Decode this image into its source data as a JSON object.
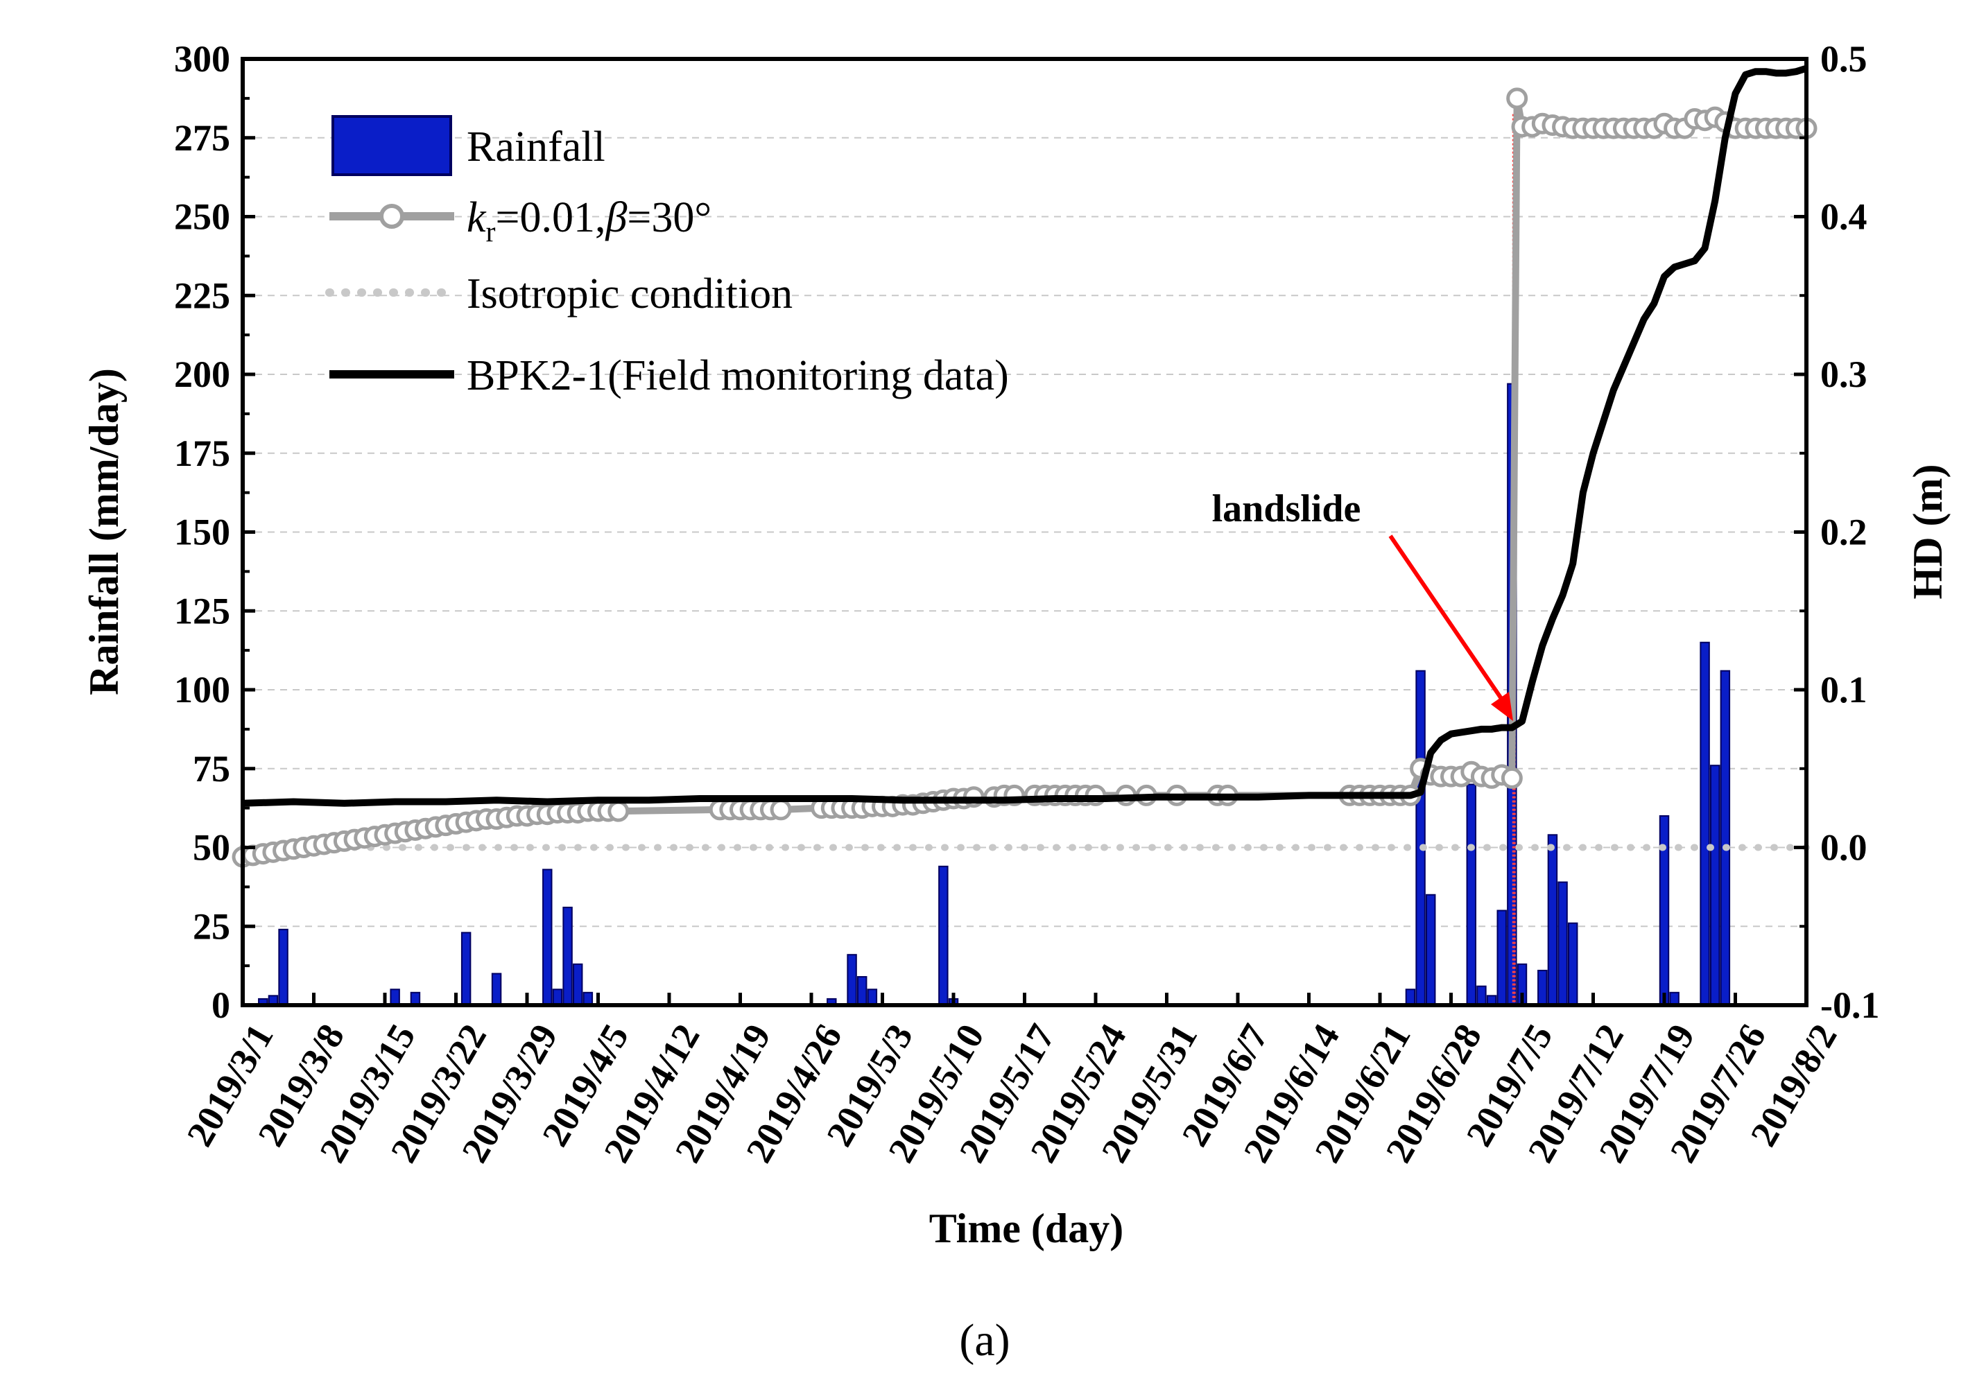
{
  "chart_data": {
    "type": "bar+line",
    "title": "",
    "caption": "(a)",
    "xlabel": "Time (day)",
    "ylabel_left": "Rainfall (mm/day)",
    "ylabel_right": "HD (m)",
    "x_start_date": "2019/3/1",
    "x_range_days": [
      0,
      154
    ],
    "ylim_left": [
      0,
      300
    ],
    "ylim_right": [
      -0.1,
      0.5
    ],
    "yticks_left": [
      0,
      25,
      50,
      75,
      100,
      125,
      150,
      175,
      200,
      225,
      250,
      275,
      300
    ],
    "yticks_right": [
      "-0.1",
      "0.0",
      "0.1",
      "0.2",
      "0.3",
      "0.4",
      "0.5"
    ],
    "yticks_right_values": [
      -0.1,
      0.0,
      0.1,
      0.2,
      0.3,
      0.4,
      0.5
    ],
    "x_ticks": [
      {
        "day": 0,
        "label": "2019/3/1"
      },
      {
        "day": 7,
        "label": "2019/3/8"
      },
      {
        "day": 14,
        "label": "2019/3/15"
      },
      {
        "day": 21,
        "label": "2019/3/22"
      },
      {
        "day": 28,
        "label": "2019/3/29"
      },
      {
        "day": 35,
        "label": "2019/4/5"
      },
      {
        "day": 42,
        "label": "2019/4/12"
      },
      {
        "day": 49,
        "label": "2019/4/19"
      },
      {
        "day": 56,
        "label": "2019/4/26"
      },
      {
        "day": 63,
        "label": "2019/5/3"
      },
      {
        "day": 70,
        "label": "2019/5/10"
      },
      {
        "day": 77,
        "label": "2019/5/17"
      },
      {
        "day": 84,
        "label": "2019/5/24"
      },
      {
        "day": 91,
        "label": "2019/5/31"
      },
      {
        "day": 98,
        "label": "2019/6/7"
      },
      {
        "day": 105,
        "label": "2019/6/14"
      },
      {
        "day": 112,
        "label": "2019/6/21"
      },
      {
        "day": 119,
        "label": "2019/6/28"
      },
      {
        "day": 126,
        "label": "2019/7/5"
      },
      {
        "day": 133,
        "label": "2019/7/12"
      },
      {
        "day": 140,
        "label": "2019/7/19"
      },
      {
        "day": 147,
        "label": "2019/7/26"
      },
      {
        "day": 154,
        "label": "2019/8/2"
      }
    ],
    "legend": [
      {
        "key": "rainfall",
        "label": "Rainfall"
      },
      {
        "key": "simulated",
        "label_k": "k",
        "label_sub": "r",
        "label_mid": "=0.01,",
        "label_beta": "β",
        "label_end": "=30°"
      },
      {
        "key": "isotropic",
        "label": "Isotropic condition"
      },
      {
        "key": "field",
        "label": "BPK2-1(Field monitoring data)"
      }
    ],
    "rainfall": [
      {
        "day": 2,
        "value": 2
      },
      {
        "day": 3,
        "value": 3
      },
      {
        "day": 4,
        "value": 24
      },
      {
        "day": 15,
        "value": 5
      },
      {
        "day": 17,
        "value": 4
      },
      {
        "day": 22,
        "value": 23
      },
      {
        "day": 25,
        "value": 10
      },
      {
        "day": 30,
        "value": 43
      },
      {
        "day": 31,
        "value": 5
      },
      {
        "day": 32,
        "value": 31
      },
      {
        "day": 33,
        "value": 13
      },
      {
        "day": 34,
        "value": 4
      },
      {
        "day": 58,
        "value": 2
      },
      {
        "day": 60,
        "value": 16
      },
      {
        "day": 61,
        "value": 9
      },
      {
        "day": 62,
        "value": 5
      },
      {
        "day": 69,
        "value": 44
      },
      {
        "day": 70,
        "value": 2
      },
      {
        "day": 115,
        "value": 5
      },
      {
        "day": 116,
        "value": 106
      },
      {
        "day": 117,
        "value": 35
      },
      {
        "day": 121,
        "value": 70
      },
      {
        "day": 122,
        "value": 6
      },
      {
        "day": 123,
        "value": 3
      },
      {
        "day": 124,
        "value": 30
      },
      {
        "day": 125,
        "value": 197
      },
      {
        "day": 126,
        "value": 13
      },
      {
        "day": 128,
        "value": 11
      },
      {
        "day": 129,
        "value": 54
      },
      {
        "day": 130,
        "value": 39
      },
      {
        "day": 131,
        "value": 26
      },
      {
        "day": 140,
        "value": 60
      },
      {
        "day": 141,
        "value": 4
      },
      {
        "day": 144,
        "value": 115
      },
      {
        "day": 145,
        "value": 76
      },
      {
        "day": 146,
        "value": 106
      }
    ],
    "simulated_hd": {
      "name": "k_r=0.01, β=30°",
      "points": [
        [
          0,
          -0.006
        ],
        [
          1,
          -0.005
        ],
        [
          2,
          -0.004
        ],
        [
          3,
          -0.003
        ],
        [
          4,
          -0.002
        ],
        [
          5,
          -0.001
        ],
        [
          6,
          0.0
        ],
        [
          7,
          0.001
        ],
        [
          8,
          0.002
        ],
        [
          9,
          0.003
        ],
        [
          10,
          0.004
        ],
        [
          11,
          0.005
        ],
        [
          12,
          0.006
        ],
        [
          13,
          0.007
        ],
        [
          14,
          0.008
        ],
        [
          15,
          0.009
        ],
        [
          16,
          0.01
        ],
        [
          17,
          0.011
        ],
        [
          18,
          0.012
        ],
        [
          19,
          0.013
        ],
        [
          20,
          0.014
        ],
        [
          21,
          0.015
        ],
        [
          22,
          0.016
        ],
        [
          23,
          0.017
        ],
        [
          24,
          0.018
        ],
        [
          25,
          0.018
        ],
        [
          26,
          0.019
        ],
        [
          27,
          0.02
        ],
        [
          28,
          0.02
        ],
        [
          29,
          0.021
        ],
        [
          30,
          0.021
        ],
        [
          31,
          0.022
        ],
        [
          32,
          0.022
        ],
        [
          33,
          0.022
        ],
        [
          34,
          0.023
        ],
        [
          35,
          0.023
        ],
        [
          36,
          0.023
        ],
        [
          37,
          0.023
        ],
        [
          47,
          0.024
        ],
        [
          48,
          0.024
        ],
        [
          49,
          0.024
        ],
        [
          50,
          0.024
        ],
        [
          51,
          0.024
        ],
        [
          52,
          0.024
        ],
        [
          53,
          0.024
        ],
        [
          57,
          0.025
        ],
        [
          58,
          0.025
        ],
        [
          59,
          0.025
        ],
        [
          60,
          0.025
        ],
        [
          61,
          0.025
        ],
        [
          62,
          0.026
        ],
        [
          63,
          0.026
        ],
        [
          64,
          0.026
        ],
        [
          65,
          0.027
        ],
        [
          66,
          0.027
        ],
        [
          67,
          0.028
        ],
        [
          68,
          0.029
        ],
        [
          69,
          0.03
        ],
        [
          70,
          0.031
        ],
        [
          71,
          0.031
        ],
        [
          72,
          0.032
        ],
        [
          74,
          0.032
        ],
        [
          75,
          0.033
        ],
        [
          76,
          0.033
        ],
        [
          78,
          0.033
        ],
        [
          79,
          0.033
        ],
        [
          80,
          0.033
        ],
        [
          81,
          0.033
        ],
        [
          82,
          0.033
        ],
        [
          83,
          0.033
        ],
        [
          84,
          0.033
        ],
        [
          87,
          0.033
        ],
        [
          89,
          0.033
        ],
        [
          92,
          0.033
        ],
        [
          96,
          0.033
        ],
        [
          97,
          0.033
        ],
        [
          109,
          0.033
        ],
        [
          110,
          0.033
        ],
        [
          111,
          0.033
        ],
        [
          112,
          0.033
        ],
        [
          113,
          0.033
        ],
        [
          114,
          0.033
        ],
        [
          115,
          0.033
        ],
        [
          116,
          0.05
        ],
        [
          117,
          0.046
        ],
        [
          118,
          0.045
        ],
        [
          119,
          0.045
        ],
        [
          120,
          0.045
        ],
        [
          121,
          0.048
        ],
        [
          122,
          0.045
        ],
        [
          123,
          0.044
        ],
        [
          124,
          0.046
        ],
        [
          125,
          0.044
        ],
        [
          125.5,
          0.475
        ],
        [
          126,
          0.457
        ],
        [
          127,
          0.457
        ],
        [
          128,
          0.459
        ],
        [
          129,
          0.458
        ],
        [
          130,
          0.457
        ],
        [
          131,
          0.456
        ],
        [
          132,
          0.456
        ],
        [
          133,
          0.456
        ],
        [
          134,
          0.456
        ],
        [
          135,
          0.456
        ],
        [
          136,
          0.456
        ],
        [
          137,
          0.456
        ],
        [
          138,
          0.456
        ],
        [
          139,
          0.456
        ],
        [
          140,
          0.459
        ],
        [
          141,
          0.456
        ],
        [
          142,
          0.456
        ],
        [
          143,
          0.462
        ],
        [
          144,
          0.461
        ],
        [
          145,
          0.463
        ],
        [
          146,
          0.46
        ],
        [
          147,
          0.456
        ],
        [
          148,
          0.456
        ],
        [
          149,
          0.456
        ],
        [
          150,
          0.456
        ],
        [
          151,
          0.456
        ],
        [
          152,
          0.456
        ],
        [
          153,
          0.456
        ],
        [
          154,
          0.456
        ]
      ]
    },
    "isotropic_hd": {
      "name": "Isotropic condition",
      "points": [
        [
          0,
          0.0
        ],
        [
          154,
          0.0
        ]
      ]
    },
    "field_hd": {
      "name": "BPK2-1(Field monitoring data)",
      "points": [
        [
          0,
          0.028
        ],
        [
          5,
          0.029
        ],
        [
          10,
          0.028
        ],
        [
          15,
          0.029
        ],
        [
          20,
          0.029
        ],
        [
          25,
          0.03
        ],
        [
          30,
          0.029
        ],
        [
          35,
          0.03
        ],
        [
          40,
          0.03
        ],
        [
          45,
          0.031
        ],
        [
          50,
          0.031
        ],
        [
          55,
          0.031
        ],
        [
          60,
          0.031
        ],
        [
          65,
          0.03
        ],
        [
          70,
          0.03
        ],
        [
          75,
          0.03
        ],
        [
          80,
          0.031
        ],
        [
          85,
          0.031
        ],
        [
          90,
          0.032
        ],
        [
          95,
          0.032
        ],
        [
          100,
          0.032
        ],
        [
          105,
          0.033
        ],
        [
          110,
          0.033
        ],
        [
          115,
          0.033
        ],
        [
          116,
          0.035
        ],
        [
          117,
          0.06
        ],
        [
          118,
          0.068
        ],
        [
          119,
          0.072
        ],
        [
          120,
          0.073
        ],
        [
          121,
          0.074
        ],
        [
          122,
          0.075
        ],
        [
          123,
          0.075
        ],
        [
          124,
          0.076
        ],
        [
          125,
          0.076
        ],
        [
          126,
          0.08
        ],
        [
          127,
          0.105
        ],
        [
          128,
          0.128
        ],
        [
          129,
          0.145
        ],
        [
          130,
          0.16
        ],
        [
          131,
          0.18
        ],
        [
          132,
          0.225
        ],
        [
          133,
          0.25
        ],
        [
          134,
          0.27
        ],
        [
          135,
          0.29
        ],
        [
          136,
          0.305
        ],
        [
          137,
          0.32
        ],
        [
          138,
          0.335
        ],
        [
          139,
          0.345
        ],
        [
          140,
          0.362
        ],
        [
          141,
          0.368
        ],
        [
          142,
          0.37
        ],
        [
          143,
          0.372
        ],
        [
          144,
          0.38
        ],
        [
          145,
          0.41
        ],
        [
          146,
          0.45
        ],
        [
          147,
          0.478
        ],
        [
          148,
          0.49
        ],
        [
          149,
          0.492
        ],
        [
          150,
          0.492
        ],
        [
          151,
          0.491
        ],
        [
          152,
          0.491
        ],
        [
          153,
          0.492
        ],
        [
          154,
          0.494
        ]
      ]
    },
    "annotation": {
      "text": "landslide",
      "day": 125.2,
      "hd": 0.075,
      "color": "#ff0000"
    },
    "colors": {
      "rainfall_fill": "#0a1ec8",
      "rainfall_stroke": "#000060",
      "simulated": "#a0a0a0",
      "isotropic": "#c8c8c8",
      "field": "#000000",
      "grid": "#c8c8c8",
      "landslide_line": "#ff4444"
    }
  }
}
